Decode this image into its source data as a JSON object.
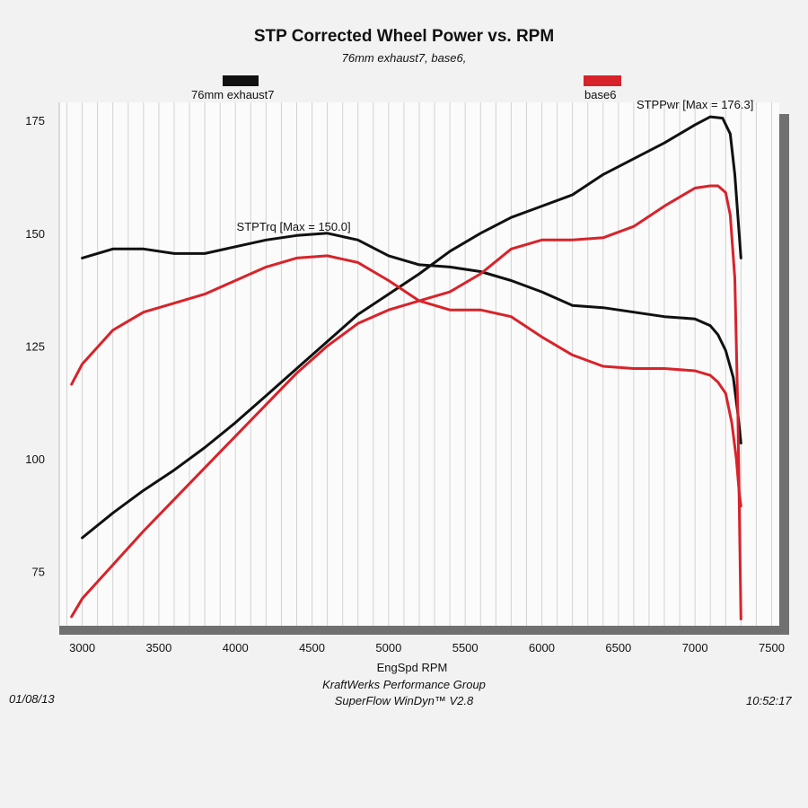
{
  "chart_data": {
    "type": "line",
    "title": "STP Corrected Wheel Power vs. RPM",
    "subtitle": "76mm exhaust7, base6,",
    "xlabel": "EngSpd  RPM",
    "ylabel": "",
    "xlim": [
      2850,
      7550
    ],
    "ylim": [
      63,
      179
    ],
    "grid": true,
    "x_ticks": [
      3000,
      3500,
      4000,
      4500,
      5000,
      5500,
      6000,
      6500,
      7000,
      7500
    ],
    "y_ticks": [
      75,
      100,
      125,
      150,
      175
    ],
    "legend": [
      {
        "name": "76mm exhaust7",
        "color": "#111111"
      },
      {
        "name": "base6",
        "color": "#d8232a"
      }
    ],
    "annotations": [
      {
        "text": "STPPwr [Max = 176.3]",
        "x": 7000,
        "y": 177.6
      },
      {
        "text": "STPTrq [Max = 150.0]",
        "x": 4380,
        "y": 150.5
      }
    ],
    "series": [
      {
        "name": "76mm exhaust7",
        "curve": "STPPwr",
        "color": "#111111",
        "x": [
          3000,
          3200,
          3400,
          3600,
          3800,
          4000,
          4200,
          4400,
          4600,
          4800,
          5000,
          5200,
          5400,
          5600,
          5800,
          6000,
          6200,
          6400,
          6600,
          6800,
          7000,
          7100,
          7180,
          7230,
          7260,
          7300
        ],
        "y": [
          82.5,
          88,
          93,
          97.5,
          102.5,
          108,
          114,
          120,
          126,
          132,
          136.5,
          141,
          146,
          150,
          153.5,
          156,
          158.5,
          163,
          166.5,
          170,
          174,
          175.8,
          175.5,
          172,
          163,
          144.5
        ]
      },
      {
        "name": "76mm exhaust7",
        "curve": "STPTrq",
        "color": "#111111",
        "x": [
          3000,
          3200,
          3400,
          3600,
          3800,
          4000,
          4200,
          4400,
          4600,
          4800,
          5000,
          5200,
          5400,
          5600,
          5800,
          6000,
          6200,
          6400,
          6600,
          6800,
          7000,
          7100,
          7150,
          7200,
          7250,
          7280,
          7300
        ],
        "y": [
          144.5,
          146.5,
          146.5,
          145.5,
          145.5,
          147,
          148.5,
          149.5,
          150,
          148.5,
          145,
          143,
          142.5,
          141.5,
          139.5,
          137,
          134,
          133.5,
          132.5,
          131.5,
          131,
          129.5,
          127.5,
          124,
          118,
          110,
          103.5
        ]
      },
      {
        "name": "base6",
        "curve": "STPPwr",
        "color": "#d8232a",
        "x": [
          2930,
          3000,
          3200,
          3400,
          3600,
          3800,
          4000,
          4200,
          4400,
          4600,
          4800,
          5000,
          5200,
          5400,
          5600,
          5800,
          6000,
          6200,
          6400,
          6600,
          6800,
          7000,
          7100,
          7150,
          7200,
          7230,
          7260,
          7280,
          7300
        ],
        "y": [
          65,
          69,
          76.5,
          84,
          91,
          98,
          105,
          112,
          119,
          125,
          130,
          133,
          135,
          137,
          141,
          146.5,
          148.5,
          148.5,
          149,
          151.5,
          156,
          160,
          160.5,
          160.5,
          159,
          154,
          140,
          110,
          64.5
        ]
      },
      {
        "name": "base6",
        "curve": "STPTrq",
        "color": "#d8232a",
        "x": [
          2930,
          3000,
          3200,
          3400,
          3600,
          3800,
          4000,
          4200,
          4400,
          4600,
          4800,
          5000,
          5200,
          5400,
          5600,
          5800,
          6000,
          6200,
          6400,
          6600,
          6800,
          7000,
          7100,
          7150,
          7200,
          7240,
          7270,
          7290,
          7300
        ],
        "y": [
          116.5,
          121,
          128.5,
          132.5,
          134.5,
          136.5,
          139.5,
          142.5,
          144.5,
          145,
          143.5,
          139.5,
          135,
          133,
          133,
          131.5,
          127,
          123,
          120.5,
          120,
          120,
          119.5,
          118.5,
          117,
          114.5,
          108,
          100,
          92,
          89.5
        ]
      }
    ]
  },
  "legend_items": {
    "item1": {
      "label": "76mm exhaust7",
      "color": "#111111"
    },
    "item2": {
      "label": "base6",
      "color": "#d8232a"
    }
  },
  "footer": {
    "line1": "KraftWerks Performance Group",
    "line2": "SuperFlow WinDyn™ V2.8",
    "date": "01/08/13",
    "time": "10:52:17"
  }
}
